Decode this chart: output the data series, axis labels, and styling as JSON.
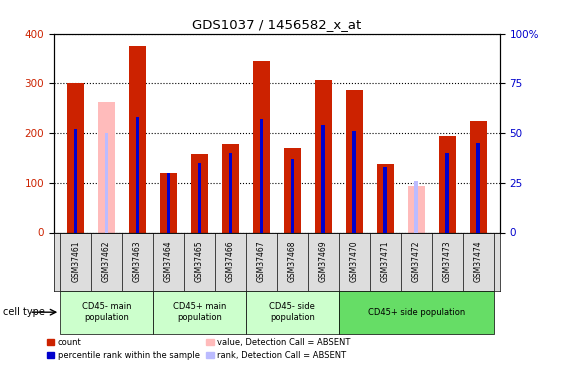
{
  "title": "GDS1037 / 1456582_x_at",
  "samples": [
    "GSM37461",
    "GSM37462",
    "GSM37463",
    "GSM37464",
    "GSM37465",
    "GSM37466",
    "GSM37467",
    "GSM37468",
    "GSM37469",
    "GSM37470",
    "GSM37471",
    "GSM37472",
    "GSM37473",
    "GSM37474"
  ],
  "counts": [
    300,
    0,
    375,
    120,
    158,
    178,
    346,
    170,
    307,
    287,
    137,
    0,
    194,
    225
  ],
  "absent_counts": [
    0,
    263,
    0,
    0,
    0,
    0,
    0,
    0,
    0,
    0,
    0,
    93,
    0,
    0
  ],
  "ranks": [
    52,
    0,
    58,
    30,
    35,
    40,
    57,
    37,
    54,
    51,
    33,
    0,
    40,
    45
  ],
  "absent_ranks": [
    0,
    50,
    0,
    0,
    0,
    0,
    0,
    0,
    0,
    0,
    0,
    26,
    0,
    0
  ],
  "absent_flag": [
    false,
    true,
    false,
    false,
    false,
    false,
    false,
    false,
    false,
    false,
    false,
    true,
    false,
    false
  ],
  "cell_types": [
    {
      "label": "CD45- main\npopulation",
      "start": 0,
      "end": 2,
      "color": "#ccffcc"
    },
    {
      "label": "CD45+ main\npopulation",
      "start": 3,
      "end": 5,
      "color": "#ccffcc"
    },
    {
      "label": "CD45- side\npopulation",
      "start": 6,
      "end": 8,
      "color": "#ccffcc"
    },
    {
      "label": "CD45+ side population",
      "start": 9,
      "end": 13,
      "color": "#66dd66"
    }
  ],
  "ylim_left": [
    0,
    400
  ],
  "ylim_right": [
    0,
    100
  ],
  "count_color": "#cc2200",
  "rank_color": "#0000cc",
  "absent_count_color": "#ffbbbb",
  "absent_rank_color": "#bbbbff",
  "bg_color": "#ffffff",
  "grid_color": "#000000",
  "legend_items": [
    {
      "label": "count",
      "color": "#cc2200"
    },
    {
      "label": "percentile rank within the sample",
      "color": "#0000cc"
    },
    {
      "label": "value, Detection Call = ABSENT",
      "color": "#ffbbbb"
    },
    {
      "label": "rank, Detection Call = ABSENT",
      "color": "#bbbbff"
    }
  ]
}
